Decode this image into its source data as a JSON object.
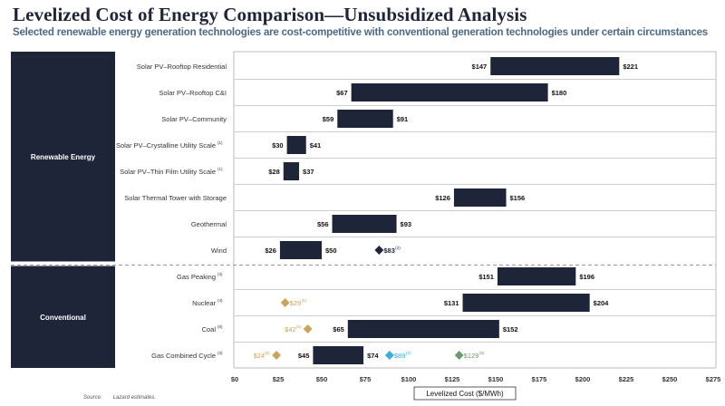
{
  "title": "Levelized Cost of Energy Comparison—Unsubsidized Analysis",
  "subtitle": "Selected renewable energy generation technologies are cost-competitive with conventional generation technologies under certain circumstances",
  "source_label": "Source:",
  "source_text": "Lazard estimates.",
  "chart_data": {
    "type": "bar",
    "orientation": "horizontal-range",
    "xlabel": "Levelized Cost ($/MWh)",
    "xlim": [
      0,
      275
    ],
    "xticks": [
      "$0",
      "$25",
      "$50",
      "$75",
      "$100",
      "$125",
      "$150",
      "$175",
      "$200",
      "$225",
      "$250",
      "$275"
    ],
    "groups": [
      {
        "name": "Renewable Energy",
        "rows": [
          0,
          1,
          2,
          3,
          4,
          5,
          6,
          7
        ]
      },
      {
        "name": "Conventional",
        "rows": [
          8,
          9,
          10,
          11
        ]
      }
    ],
    "colors": {
      "bar": "#1f2538",
      "gold": "#c9a55a",
      "blue": "#3aaee0",
      "green": "#6e9a6e",
      "dark": "#1f2538",
      "panel": "#1f2538"
    },
    "rows": [
      {
        "label": "Solar PV–Rooftop Residential",
        "note": "",
        "low": 147,
        "high": 221,
        "markers": []
      },
      {
        "label": "Solar PV–Rooftop C&I",
        "note": "",
        "low": 67,
        "high": 180,
        "markers": []
      },
      {
        "label": "Solar PV–Community",
        "note": "",
        "low": 59,
        "high": 91,
        "markers": []
      },
      {
        "label": "Solar PV–Crystalline Utility Scale",
        "note": "(1)",
        "low": 30,
        "high": 41,
        "markers": []
      },
      {
        "label": "Solar PV–Thin Film Utility Scale",
        "note": "(1)",
        "low": 28,
        "high": 37,
        "markers": []
      },
      {
        "label": "Solar Thermal Tower with Storage",
        "note": "",
        "low": 126,
        "high": 156,
        "markers": []
      },
      {
        "label": "Geothermal",
        "note": "",
        "low": 56,
        "high": 93,
        "markers": []
      },
      {
        "label": "Wind",
        "note": "",
        "low": 26,
        "high": 50,
        "markers": [
          {
            "value": 83,
            "text": "$83",
            "note": "(2)",
            "color": "dark",
            "side": "right"
          }
        ]
      },
      {
        "label": "Gas Peaking",
        "note": "(3)",
        "low": 151,
        "high": 196,
        "markers": []
      },
      {
        "label": "Nuclear",
        "note": "(4)",
        "low": 131,
        "high": 204,
        "markers": [
          {
            "value": 29,
            "text": "$29",
            "note": "(5)",
            "color": "gold",
            "side": "right"
          }
        ]
      },
      {
        "label": "Coal",
        "note": "(6)",
        "low": 65,
        "high": 152,
        "markers": [
          {
            "value": 42,
            "text": "$42",
            "note": "(5)",
            "color": "gold",
            "side": "left"
          }
        ]
      },
      {
        "label": "Gas Combined Cycle",
        "note": "(3)",
        "low": 45,
        "high": 74,
        "markers": [
          {
            "value": 24,
            "text": "$24",
            "note": "(5)",
            "color": "gold",
            "side": "left"
          },
          {
            "value": 89,
            "text": "$89",
            "note": "(7)",
            "color": "blue",
            "side": "right"
          },
          {
            "value": 129,
            "text": "$129",
            "note": "(8)",
            "color": "green",
            "side": "right"
          }
        ]
      }
    ]
  }
}
